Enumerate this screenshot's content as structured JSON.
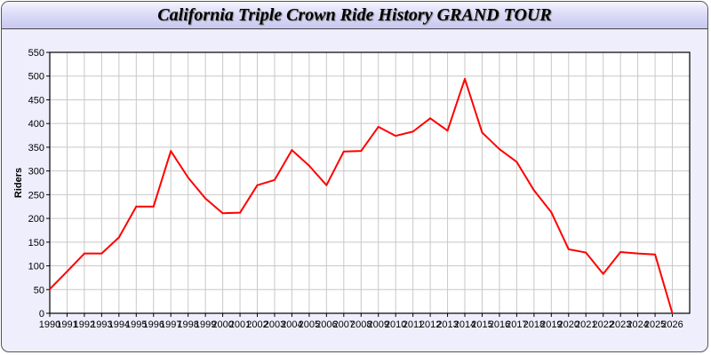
{
  "chart_data": {
    "type": "line",
    "title": "California Triple Crown Ride History GRAND TOUR",
    "xlabel": "",
    "ylabel": "Riders",
    "xlim": [
      1990,
      2027
    ],
    "ylim": [
      0,
      550
    ],
    "yticks": [
      0,
      50,
      100,
      150,
      200,
      250,
      300,
      350,
      400,
      450,
      500,
      550
    ],
    "grid": true,
    "line_color": "#ff0000",
    "x": [
      1990,
      1991,
      1992,
      1993,
      1994,
      1995,
      1996,
      1997,
      1998,
      1999,
      2000,
      2001,
      2002,
      2003,
      2004,
      2005,
      2006,
      2007,
      2008,
      2009,
      2010,
      2011,
      2012,
      2013,
      2014,
      2015,
      2016,
      2017,
      2018,
      2019,
      2020,
      2021,
      2022,
      2023,
      2024,
      2025,
      2026
    ],
    "series": [
      {
        "values": [
          51,
          88,
          126,
          126,
          160,
          225,
          225,
          342,
          286,
          242,
          211,
          212,
          270,
          281,
          344,
          311,
          270,
          341,
          342,
          393,
          374,
          383,
          411,
          385,
          494,
          381,
          346,
          319,
          259,
          213,
          135,
          128,
          83,
          129,
          126,
          124,
          0
        ]
      }
    ]
  }
}
